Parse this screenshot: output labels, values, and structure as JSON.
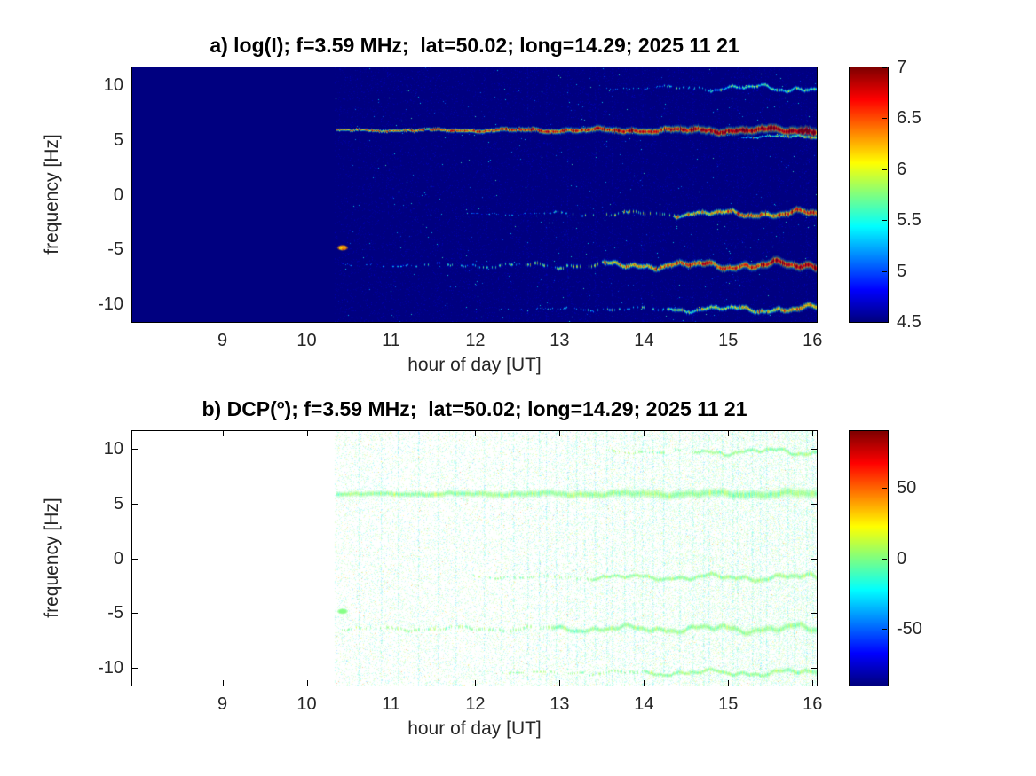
{
  "figure": {
    "background": "#ffffff",
    "text_color": "#262626",
    "title_color": "#000000"
  },
  "chart_data": [
    {
      "id": "a",
      "type": "heatmap",
      "title_parts": {
        "prefix": "a) log(I); f=3.59 MHz;  lat=50.02; long=14.29; 2025 11 21",
        "sup": "",
        "suffix": ""
      },
      "xlabel": "hour of day [UT]",
      "ylabel": "frequency [Hz]",
      "xlim": [
        7.93,
        16.05
      ],
      "ylim": [
        -11.6,
        11.6
      ],
      "xticks": [
        9,
        10,
        11,
        12,
        13,
        14,
        15,
        16
      ],
      "yticks": [
        10,
        5,
        0,
        -5,
        -10
      ],
      "colormap": "jet",
      "clim": [
        4.5,
        7
      ],
      "colorbar_ticks": [
        7,
        6.5,
        6,
        5.5,
        5,
        4.5
      ],
      "background_style": "fill-min",
      "data_start_hour": 10.33,
      "noise": {
        "density": 0.1,
        "mean": 4.6,
        "sd": 0.1,
        "strength": 0.5
      },
      "vertical_stripes": {
        "hours": [
          12.62,
          12.84,
          13.09,
          13.42,
          13.62,
          13.97,
          14.58,
          15.1,
          15.6,
          15.92
        ],
        "value": 4.75,
        "density": 0.3,
        "strength": 0.35
      },
      "render": {
        "line_strength": 0.95,
        "value_jitter": 0.25,
        "show_axis_ticks": false
      },
      "spectral_lines": [
        {
          "freq": 5.9,
          "t_start": 10.35,
          "t_end": 16.05,
          "solid_from": 10.35,
          "peak_start": 6.25,
          "peak_end": 7.0,
          "hw_start": 0.1,
          "hw_end": 0.3,
          "wobble": 0.14,
          "falloff": 1.6
        },
        {
          "freq": 9.75,
          "t_start": 13.55,
          "t_end": 16.05,
          "solid_from": 14.75,
          "peak_start": 5.15,
          "peak_end": 5.7,
          "hw_start": 0.08,
          "hw_end": 0.15,
          "wobble": 0.24,
          "falloff": 0.8
        },
        {
          "freq": -1.7,
          "t_start": 11.9,
          "t_end": 16.05,
          "solid_from": 14.35,
          "peak_start": 5.0,
          "peak_end": 6.7,
          "hw_start": 0.08,
          "hw_end": 0.22,
          "wobble": 0.22,
          "falloff": 1.2
        },
        {
          "freq": -6.4,
          "t_start": 10.42,
          "t_end": 16.05,
          "solid_from": 13.5,
          "peak_start": 5.1,
          "peak_end": 6.9,
          "hw_start": 0.1,
          "hw_end": 0.27,
          "wobble": 0.26,
          "falloff": 1.4
        },
        {
          "freq": -10.4,
          "t_start": 12.3,
          "t_end": 16.05,
          "solid_from": 14.3,
          "peak_start": 5.0,
          "peak_end": 6.3,
          "hw_start": 0.08,
          "hw_end": 0.2,
          "wobble": 0.22,
          "falloff": 1.0
        },
        {
          "freq": 5.3,
          "t_start": 15.15,
          "t_end": 16.05,
          "solid_from": 15.15,
          "peak_start": 5.4,
          "peak_end": 5.9,
          "hw_start": 0.08,
          "hw_end": 0.12,
          "wobble": 0.12,
          "falloff": 0.8
        }
      ],
      "blob": {
        "hour": 10.42,
        "freq": -4.8,
        "rx_hours": 0.07,
        "ry_hz": 0.28,
        "value": 6.3
      }
    },
    {
      "id": "b",
      "type": "heatmap",
      "title_parts": {
        "prefix": "b) DCP(",
        "sup": "o",
        "suffix": "); f=3.59 MHz;  lat=50.02; long=14.29; 2025 11 21"
      },
      "xlabel": "hour of day [UT]",
      "ylabel": "frequency [Hz]",
      "xlim": [
        7.93,
        16.05
      ],
      "ylim": [
        -11.6,
        11.6
      ],
      "xticks": [
        9,
        10,
        11,
        12,
        13,
        14,
        15,
        16
      ],
      "yticks": [
        10,
        5,
        0,
        -5,
        -10
      ],
      "colormap": "jet",
      "clim": [
        -90,
        90
      ],
      "colorbar_ticks": [
        50,
        0,
        -50
      ],
      "background_style": "white",
      "data_start_hour": 10.33,
      "noise": {
        "density": 0.22,
        "mean": -5,
        "sd": 15,
        "strength": 0.28
      },
      "vertical_stripes": {
        "hours": [
          10.62,
          10.88,
          11.08,
          11.32,
          11.55,
          11.76,
          12.1,
          12.3,
          12.45,
          12.62,
          12.75,
          12.84,
          12.95,
          13.09,
          13.2,
          13.29,
          13.42,
          13.55,
          13.62,
          13.76,
          13.88,
          13.97,
          14.1,
          14.23,
          14.42,
          14.58,
          14.7,
          14.77,
          14.92,
          15.05,
          15.1,
          15.28,
          15.38,
          15.45,
          15.6,
          15.7,
          15.78,
          15.92,
          16.0
        ],
        "value": -20,
        "density": 0.45,
        "strength": 0.32
      },
      "render": {
        "line_strength": 0.8,
        "value_jitter": 6,
        "show_axis_ticks": true
      },
      "spectral_lines": [
        {
          "freq": 5.9,
          "t_start": 10.35,
          "t_end": 16.05,
          "solid_from": 10.35,
          "peak_start": 0,
          "peak_end": 0,
          "hw_start": 0.16,
          "hw_end": 0.3,
          "wobble": 0.12,
          "falloff": 0
        },
        {
          "freq": 9.75,
          "t_start": 13.5,
          "t_end": 16.05,
          "solid_from": 14.6,
          "peak_start": 0,
          "peak_end": 0,
          "hw_start": 0.08,
          "hw_end": 0.14,
          "wobble": 0.24,
          "falloff": 0
        },
        {
          "freq": -1.7,
          "t_start": 11.9,
          "t_end": 16.05,
          "solid_from": 13.4,
          "peak_start": 0,
          "peak_end": 0,
          "hw_start": 0.08,
          "hw_end": 0.18,
          "wobble": 0.22,
          "falloff": 0
        },
        {
          "freq": -6.4,
          "t_start": 10.42,
          "t_end": 16.05,
          "solid_from": 12.9,
          "peak_start": 0,
          "peak_end": 0,
          "hw_start": 0.09,
          "hw_end": 0.22,
          "wobble": 0.26,
          "falloff": 0
        },
        {
          "freq": -10.4,
          "t_start": 12.3,
          "t_end": 16.05,
          "solid_from": 14.0,
          "peak_start": 0,
          "peak_end": 0,
          "hw_start": 0.07,
          "hw_end": 0.16,
          "wobble": 0.22,
          "falloff": 0
        }
      ],
      "blob": {
        "hour": 10.42,
        "freq": -4.8,
        "rx_hours": 0.07,
        "ry_hz": 0.28,
        "value": 0
      }
    }
  ]
}
